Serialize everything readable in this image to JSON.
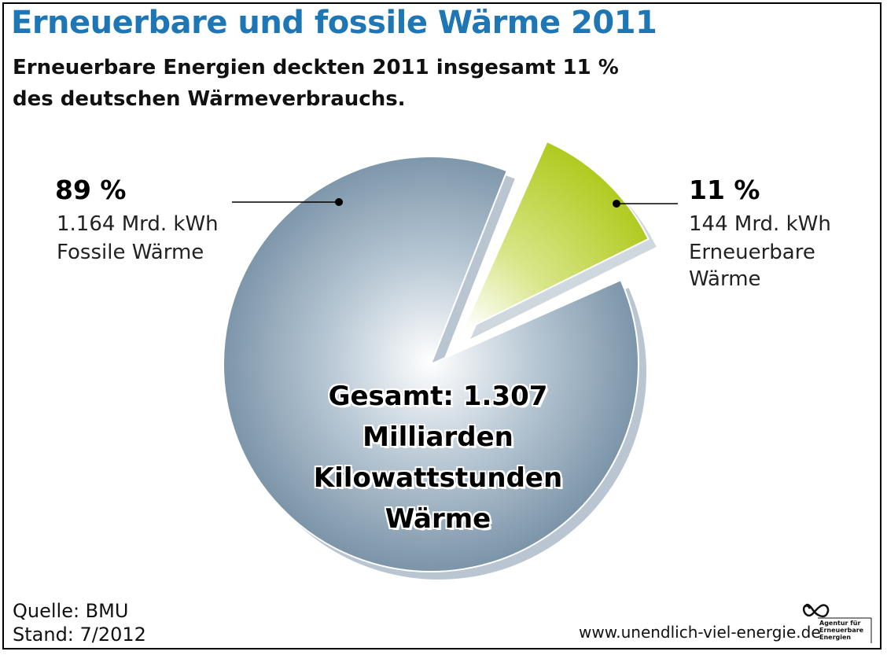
{
  "title": "Erneuerbare und fossile Wärme 2011",
  "subtitle": {
    "line1": "Erneuerbare Energien deckten 2011 insgesamt 11 %",
    "line2": "des deutschen Wärmeverbrauchs."
  },
  "chart_data": {
    "type": "pie",
    "slices": [
      {
        "percent_label": "89 %",
        "value": 1164,
        "value_label": "1.164 Mrd. kWh",
        "name_lines": [
          "Fossile Wärme"
        ],
        "color": "#7d95a9",
        "exploded": false
      },
      {
        "percent_label": "11 %",
        "value": 144,
        "value_label": "144 Mrd. kWh",
        "name_lines": [
          "Erneuerbare",
          "Wärme"
        ],
        "color": "#a7c400",
        "exploded": true
      }
    ],
    "center_label": [
      "Gesamt: 1.307",
      "Milliarden",
      "Kilowattstunden",
      "Wärme"
    ]
  },
  "footer": {
    "source": "Quelle: BMU",
    "stand": "Stand: 7/2012",
    "url": "www.unendlich-viel-energie.de",
    "logo_text": [
      "Agentur für",
      "Erneuerbare",
      "Energien"
    ]
  }
}
